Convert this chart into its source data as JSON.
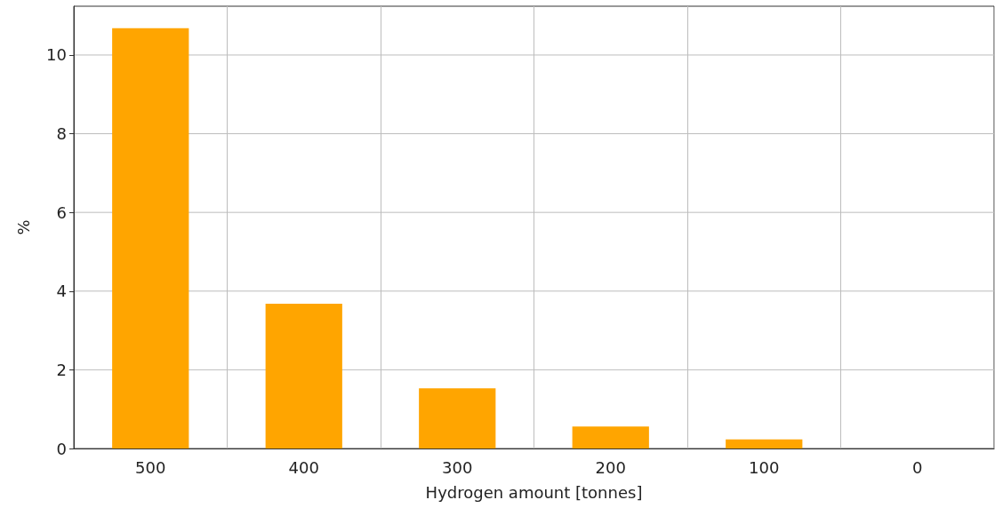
{
  "chart_data": {
    "type": "bar",
    "xlabel": "Hydrogen amount [tonnes]",
    "ylabel": "%",
    "categories": [
      "500",
      "400",
      "300",
      "200",
      "100",
      "0"
    ],
    "values": [
      10.68,
      3.68,
      1.53,
      0.56,
      0.23,
      0
    ],
    "color": "#ffa500",
    "ylim": [
      0,
      11.24
    ],
    "yticks": [
      0,
      2,
      4,
      6,
      8,
      10
    ],
    "grid": true
  }
}
